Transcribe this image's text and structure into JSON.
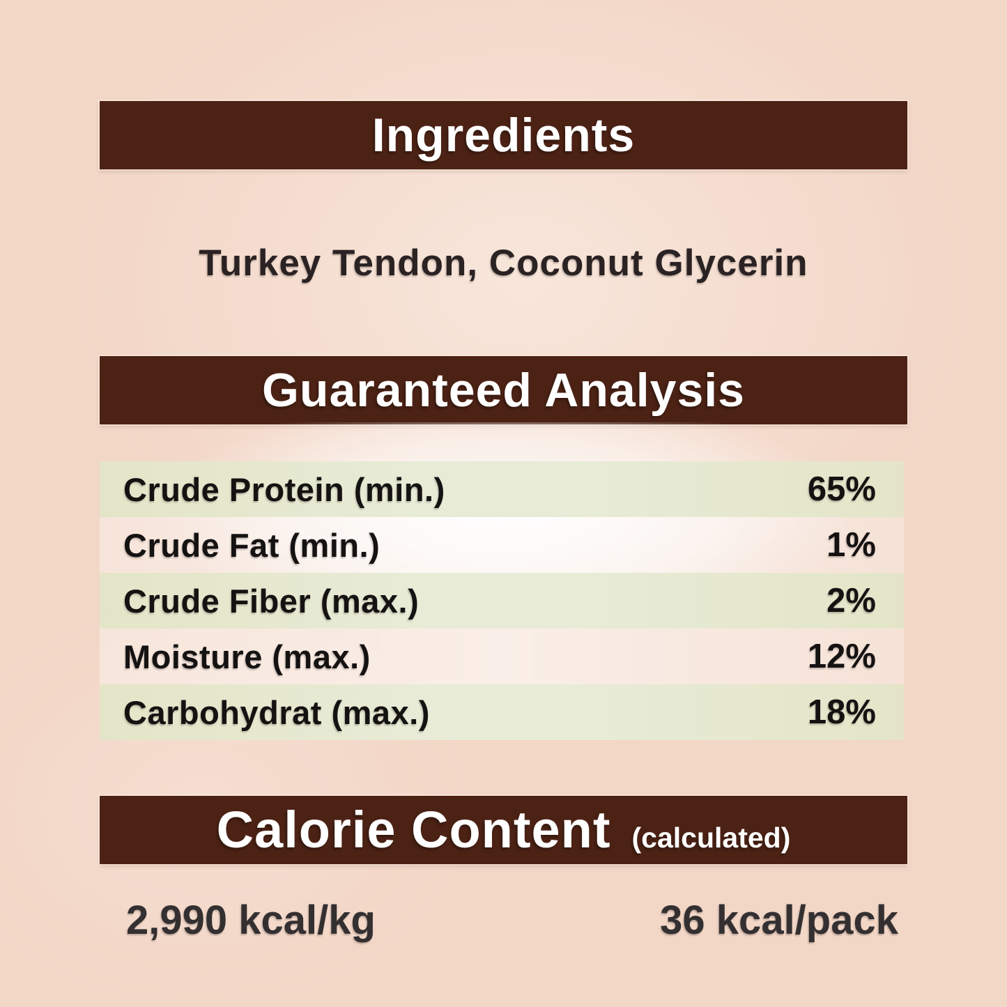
{
  "label": {
    "ingredients": {
      "header": "Ingredients",
      "list": "Turkey Tendon, Coconut Glycerin"
    },
    "guaranteed_analysis": {
      "header": "Guaranteed Analysis",
      "rows": [
        {
          "label": "Crude Protein (min.)",
          "value": "65%"
        },
        {
          "label": "Crude Fat (min.)",
          "value": "1%"
        },
        {
          "label": "Crude Fiber (max.)",
          "value": "2%"
        },
        {
          "label": "Moisture (max.)",
          "value": "12%"
        },
        {
          "label": "Carbohydrat (max.)",
          "value": "18%"
        }
      ]
    },
    "calorie_content": {
      "header": "Calorie Content",
      "qualifier": "(calculated)",
      "per_kg": "2,990 kcal/kg",
      "per_pack": "36 kcal/pack"
    }
  },
  "colors": {
    "background": "#f2d6c6",
    "header_bar": "#4c2215",
    "header_text": "#ffffff",
    "row_highlight": "#e5e7cb",
    "row_text": "#151212",
    "calorie_text": "#343031"
  }
}
